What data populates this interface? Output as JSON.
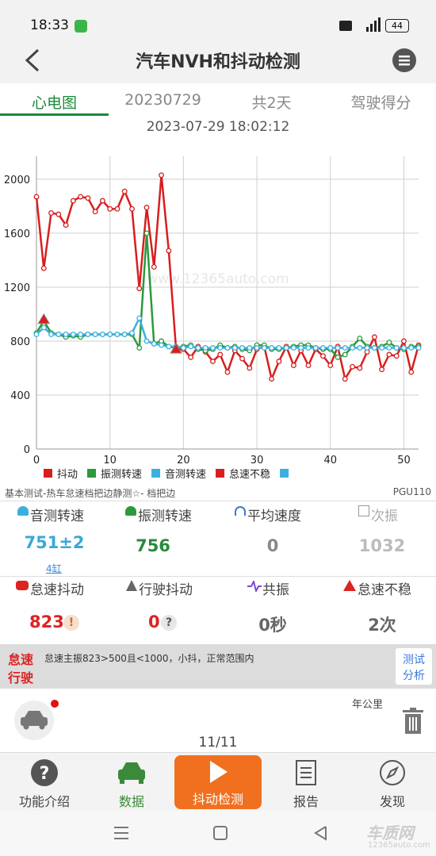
{
  "status_bar": {
    "time": "18:33",
    "battery": "44"
  },
  "header": {
    "title": "汽车NVH和抖动检测"
  },
  "tabs": [
    "心电图",
    "20230729",
    "共2天",
    "驾驶得分"
  ],
  "timestamp": "2023-07-29 18:02:12",
  "chart_data": {
    "type": "line",
    "watermark": "www.12365auto.com",
    "x": [
      0,
      1,
      2,
      3,
      4,
      5,
      6,
      7,
      8,
      9,
      10,
      11,
      12,
      13,
      14,
      15,
      16,
      17,
      18,
      19,
      20,
      21,
      22,
      23,
      24,
      25,
      26,
      27,
      28,
      29,
      30,
      31,
      32,
      33,
      34,
      35,
      36,
      37,
      38,
      39,
      40,
      41,
      42,
      43,
      44,
      45,
      46,
      47,
      48,
      49,
      50,
      51,
      52
    ],
    "series": [
      {
        "name": "抖动",
        "color": "#d81e1e",
        "marker": "circle",
        "line": true,
        "values": [
          1870,
          1340,
          1750,
          1740,
          1660,
          1840,
          1870,
          1860,
          1760,
          1840,
          1780,
          1780,
          1910,
          1780,
          1190,
          1790,
          1350,
          2030,
          1470,
          740,
          740,
          680,
          760,
          720,
          650,
          700,
          570,
          730,
          670,
          600,
          740,
          760,
          520,
          650,
          760,
          620,
          730,
          620,
          740,
          690,
          620,
          760,
          520,
          610,
          600,
          720,
          830,
          590,
          700,
          690,
          800,
          570,
          770
        ]
      },
      {
        "name": "振测转速",
        "color": "#2a9a3c",
        "marker": "circle",
        "line": true,
        "values": [
          860,
          950,
          860,
          850,
          830,
          840,
          830,
          850,
          850,
          850,
          850,
          850,
          850,
          850,
          750,
          1600,
          780,
          800,
          760,
          750,
          760,
          770,
          740,
          730,
          740,
          770,
          750,
          760,
          740,
          730,
          770,
          770,
          740,
          740,
          750,
          760,
          770,
          770,
          750,
          740,
          740,
          680,
          700,
          760,
          820,
          760,
          750,
          760,
          790,
          750,
          740,
          760,
          760
        ]
      },
      {
        "name": "音测转速",
        "color": "#3ab0e0",
        "marker": "circle",
        "line": true,
        "values": [
          850,
          900,
          850,
          850,
          850,
          850,
          850,
          850,
          850,
          850,
          850,
          850,
          850,
          860,
          970,
          800,
          780,
          770,
          760,
          760,
          750,
          760,
          750,
          750,
          750,
          750,
          750,
          750,
          750,
          750,
          750,
          750,
          750,
          750,
          750,
          750,
          750,
          750,
          750,
          750,
          750,
          750,
          750,
          750,
          750,
          750,
          750,
          750,
          750,
          750,
          750,
          750,
          750
        ]
      },
      {
        "name": "怠速不稳",
        "color": "#d81e1e",
        "marker": "triangle",
        "line": false,
        "values": [
          null,
          960,
          null,
          null,
          null,
          null,
          null,
          null,
          null,
          null,
          null,
          null,
          null,
          null,
          null,
          null,
          null,
          null,
          null,
          740,
          null,
          null,
          null,
          null,
          null,
          null,
          null,
          null,
          null,
          null,
          null,
          null,
          null,
          null,
          null,
          null,
          null,
          null,
          null,
          null,
          null,
          null,
          null,
          null,
          null,
          null,
          null,
          null,
          null,
          null,
          null,
          null,
          null
        ]
      }
    ],
    "xlim": [
      0,
      52
    ],
    "xticks": [
      0,
      10,
      20,
      30,
      40,
      50
    ],
    "ylim": [
      0,
      2170
    ],
    "yticks": [
      0,
      400,
      800,
      1200,
      1600,
      2000
    ],
    "grid": true
  },
  "test_info": {
    "mode": "基本测试-热车怠速档把边静测☆- 档把边",
    "model": "PGU110"
  },
  "stats_row1": [
    {
      "label": "音测转速",
      "value": "751±2",
      "sub": "4缸"
    },
    {
      "label": "振测转速",
      "value": "756"
    },
    {
      "label": "平均速度",
      "value": "0"
    },
    {
      "label": "次振",
      "value": "1032"
    }
  ],
  "stats_row2": [
    {
      "label": "怠速抖动",
      "value": "823",
      "badge": "!"
    },
    {
      "label": "行驶抖动",
      "value": "0",
      "badge": "?"
    },
    {
      "label": "共振",
      "value": "0秒"
    },
    {
      "label": "怠速不稳",
      "value": "2次"
    }
  ],
  "info_bar": {
    "tag1": "怠速",
    "tag2": "行驶",
    "message": "怠速主振823>500且<1000，小抖，正常范围内",
    "button1": "测试",
    "button2": "分析"
  },
  "trip": {
    "unit": "年公里",
    "page": "11/11"
  },
  "nav": [
    "功能介绍",
    "数据",
    "抖动检测",
    "报告",
    "发现"
  ],
  "logo": {
    "name": "车质网",
    "site": "12365auto.com"
  }
}
